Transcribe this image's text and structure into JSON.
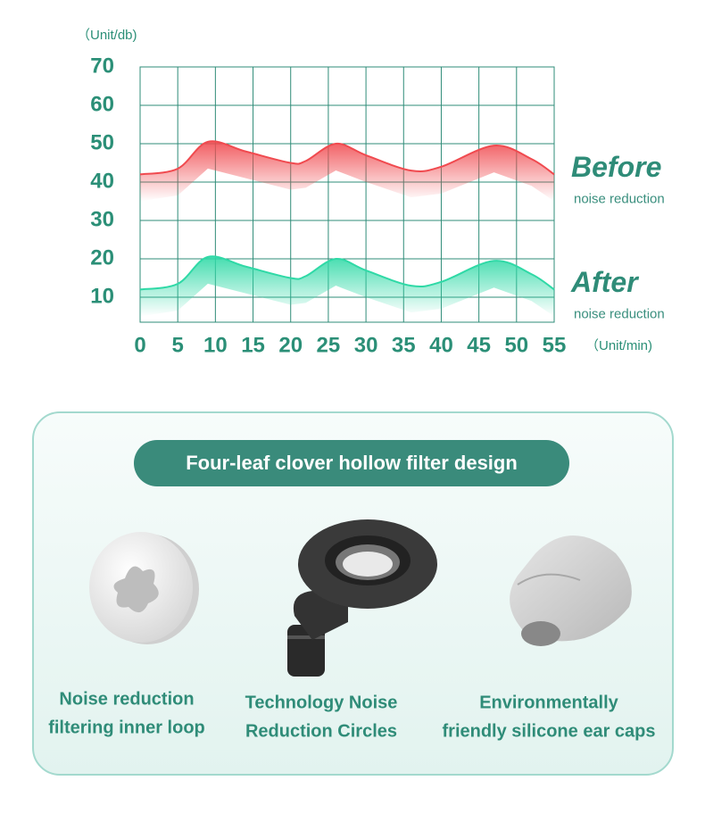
{
  "chart_data": {
    "type": "line",
    "y_label": "（Unit/db)",
    "x_label": "（Unit/min)",
    "xlim": [
      0,
      55
    ],
    "xticks": [
      0,
      5,
      10,
      15,
      20,
      25,
      30,
      35,
      40,
      45,
      50,
      55
    ],
    "ylim": [
      3.5,
      70
    ],
    "yticks": [
      10,
      20,
      30,
      40,
      50,
      60,
      70
    ],
    "grid": true,
    "x": [
      0,
      5,
      9,
      14,
      20,
      22,
      26,
      30,
      36,
      40,
      47,
      52,
      55
    ],
    "series": [
      {
        "name": "Before",
        "note": "noise reduction",
        "color": "#f04a4f",
        "values": [
          42,
          43.5,
          50.5,
          48,
          45,
          45.5,
          50,
          47,
          43,
          44,
          49.5,
          46,
          42
        ]
      },
      {
        "name": "After",
        "note": "noise reduction",
        "color": "#2fd9a6",
        "values": [
          12,
          13.5,
          20.5,
          18,
          15,
          15.5,
          20,
          17,
          13,
          14,
          19.5,
          16,
          12
        ]
      }
    ]
  },
  "panel": {
    "title": "Four-leaf clover hollow filter design",
    "items": [
      {
        "lines": [
          "Noise reduction",
          "filtering inner loop"
        ]
      },
      {
        "lines": [
          "Technology Noise",
          "Reduction Circles"
        ]
      },
      {
        "lines": [
          "Environmentally",
          "friendly silicone ear caps"
        ]
      }
    ]
  }
}
